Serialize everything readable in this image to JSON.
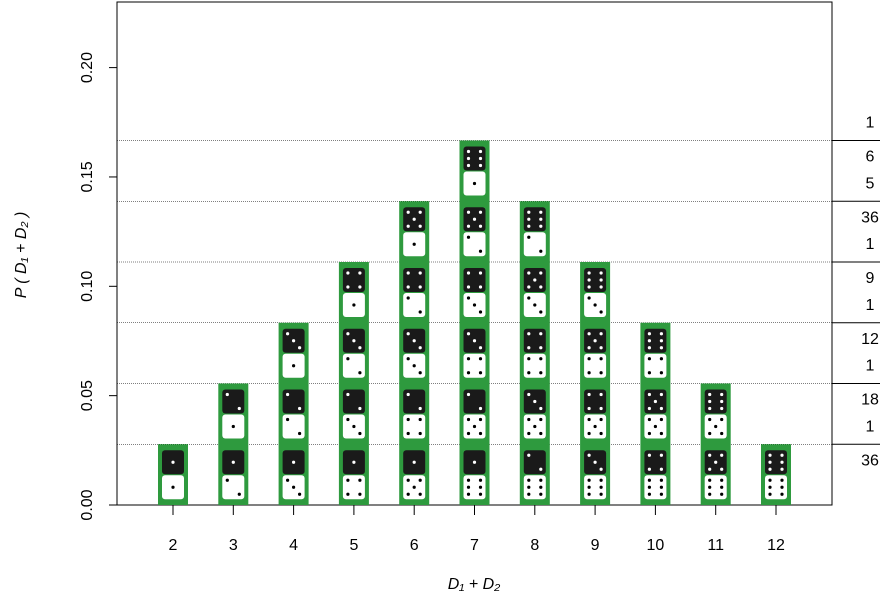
{
  "chart_data": {
    "type": "bar",
    "x_label": "D₁ + D₂",
    "y_label": "P ( D₁ + D₂ )",
    "categories": [
      "2",
      "3",
      "4",
      "5",
      "6",
      "7",
      "8",
      "9",
      "10",
      "11",
      "12"
    ],
    "values": [
      0.02778,
      0.05556,
      0.08333,
      0.11111,
      0.13889,
      0.16667,
      0.13889,
      0.11111,
      0.08333,
      0.05556,
      0.02778
    ],
    "color": "#2e9a3e",
    "ylim": [
      0,
      0.23
    ],
    "yticks": [
      {
        "value": 0,
        "label": "0.00"
      },
      {
        "value": 0.05,
        "label": "0.05"
      },
      {
        "value": 0.1,
        "label": "0.10"
      },
      {
        "value": 0.15,
        "label": "0.15"
      },
      {
        "value": 0.2,
        "label": "0.20"
      }
    ],
    "y2ticks": [
      {
        "value": 0.02778,
        "label": [
          "1",
          "36"
        ]
      },
      {
        "value": 0.05556,
        "label": [
          "1",
          "18"
        ]
      },
      {
        "value": 0.08333,
        "label": [
          "1",
          "12"
        ]
      },
      {
        "value": 0.11111,
        "label": [
          "1",
          "9"
        ]
      },
      {
        "value": 0.13889,
        "label": [
          "5",
          "36"
        ]
      },
      {
        "value": 0.16667,
        "label": [
          "1",
          "6"
        ]
      }
    ]
  }
}
